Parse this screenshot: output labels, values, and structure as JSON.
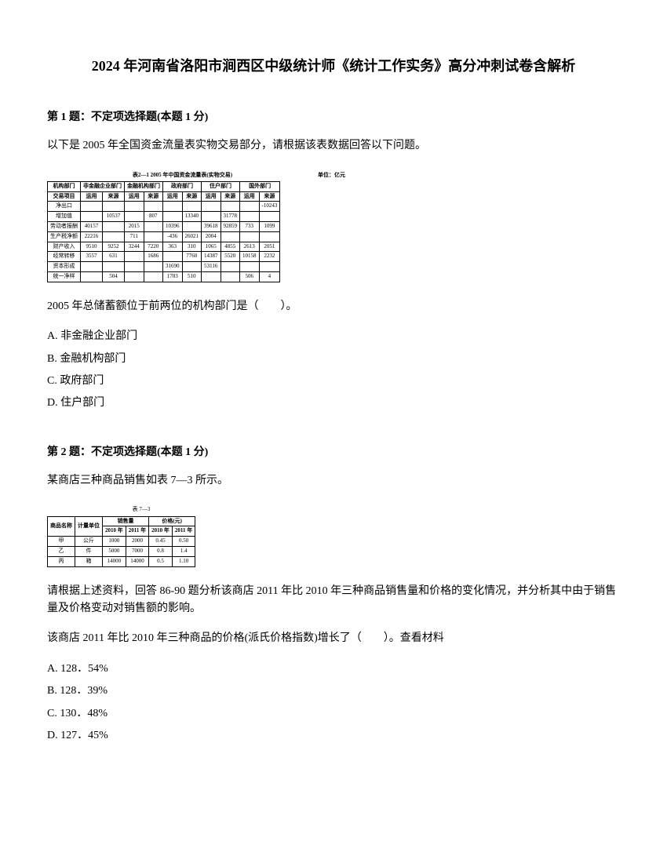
{
  "title": "2024 年河南省洛阳市涧西区中级统计师《统计工作实务》高分冲刺试卷含解析",
  "q1": {
    "header": "第 1 题：不定项选择题(本题 1 分)",
    "intro": "以下是 2005 年全国资金流量表实物交易部分，请根据该表数据回答以下问题。",
    "table_caption": "表2—1 2005 年中国资金流量表(实物交易)",
    "table_unit": "单位：亿元",
    "table_headers_row1": [
      "机构部门",
      "非金融企业部门",
      "金融机构部门",
      "政府部门",
      "住户部门",
      "国外部门"
    ],
    "table_headers_row2": [
      "交易项目",
      "运用",
      "来源",
      "运用",
      "来源",
      "运用",
      "来源",
      "运用",
      "来源",
      "运用",
      "来源"
    ],
    "table_rows": [
      [
        "净出口",
        "",
        "",
        "",
        "",
        "",
        "",
        "",
        "",
        "",
        "-10243"
      ],
      [
        "增加值",
        "",
        "10537",
        "",
        "807",
        "",
        "13340",
        "",
        "31778",
        "",
        ""
      ],
      [
        "劳动者报酬",
        "40157",
        "",
        "2015",
        "",
        "10396",
        "",
        "39618",
        "92859",
        "733",
        "1099"
      ],
      [
        "生产税净额",
        "22216",
        "",
        "711",
        "",
        "-436",
        "26021",
        "2004",
        "",
        "",
        ""
      ],
      [
        "财产收入",
        "9510",
        "9252",
        "3244",
        "7220",
        "363",
        "310",
        "1065",
        "4855",
        "2613",
        "2051"
      ],
      [
        "经常转移",
        "3557",
        "631",
        "",
        "1686",
        "",
        "7760",
        "14387",
        "5520",
        "10158",
        "2232"
      ],
      [
        "资本形成",
        "",
        "",
        "",
        "",
        "31690",
        "",
        "53116",
        "",
        "",
        ""
      ],
      [
        "统一净样",
        "",
        "504",
        "",
        "",
        "1703",
        "510",
        "",
        "",
        "506",
        "4"
      ]
    ],
    "question": "2005 年总储蓄额位于前两位的机构部门是（　　）。",
    "options": {
      "A": "A. 非金融企业部门",
      "B": "B. 金融机构部门",
      "C": "C. 政府部门",
      "D": "D. 住户部门"
    }
  },
  "q2": {
    "header": "第 2 题：不定项选择题(本题 1 分)",
    "intro": "某商店三种商品销售如表 7—3 所示。",
    "table_caption": "表 7—3",
    "table_headers_row1": [
      "商品名称",
      "计量单位",
      "销售量",
      "",
      "价格(元)",
      ""
    ],
    "table_headers_row2": [
      "",
      "",
      "2010 年",
      "2011 年",
      "2010 年",
      "2011 年"
    ],
    "table_rows": [
      [
        "甲",
        "公斤",
        "1000",
        "2000",
        "0.45",
        "0.50"
      ],
      [
        "乙",
        "件",
        "5000",
        "7000",
        "0.8",
        "1.4"
      ],
      [
        "丙",
        "箱",
        "14000",
        "14000",
        "0.5",
        "1.10"
      ]
    ],
    "question_p1": "请根据上述资料，回答 86-90 题分析该商店 2011 年比 2010 年三种商品销售量和价格的变化情况，并分析其中由于销售量及价格变动对销售额的影响。",
    "question_p2": "该商店 2011 年比 2010 年三种商品的价格(派氏价格指数)增长了（　　）。查看材料",
    "options": {
      "A": "A. 128．54%",
      "B": "B. 128．39%",
      "C": "C. 130．48%",
      "D": "D. 127．45%"
    }
  }
}
